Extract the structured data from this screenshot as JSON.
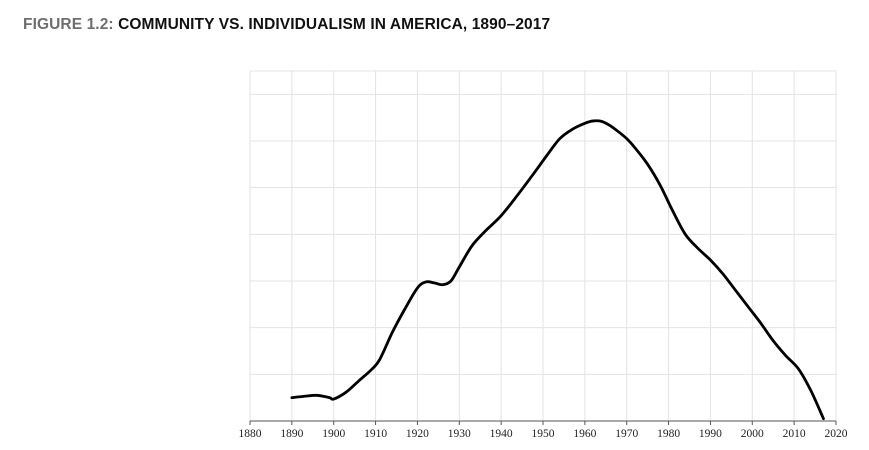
{
  "figure": {
    "label": "FIGURE 1.2:",
    "title": "COMMUNITY VS. INDIVIDUALISM IN AMERICA, 1890–2017"
  },
  "colors": {
    "line": "#000000",
    "grid": "#e3e3e3",
    "label_gray": "#6e6e6e"
  },
  "chart_data": {
    "type": "line",
    "title": "COMMUNITY VS. INDIVIDUALISM IN AMERICA, 1890–2017",
    "xlabel": "",
    "ylabel": "",
    "grid": true,
    "legend": "none",
    "xlim": [
      1880,
      2020
    ],
    "ylim": [
      0,
      7.5
    ],
    "x_ticks": [
      1880,
      1890,
      1900,
      1910,
      1920,
      1930,
      1940,
      1950,
      1960,
      1970,
      1980,
      1990,
      2000,
      2010,
      2020
    ],
    "x_tick_labels": [
      "1880",
      "1890",
      "1900",
      "1910",
      "1920",
      "1930",
      "1940",
      "1950",
      "1960",
      "1970",
      "1980",
      "1990",
      "2000",
      "2010",
      "2020"
    ],
    "y_gridlines": [
      1,
      2,
      3,
      4,
      5,
      6,
      7
    ],
    "y_tick_labels_shown": false,
    "series": [
      {
        "x": [
          1890,
          1893,
          1896,
          1899,
          1900,
          1903,
          1906,
          1909,
          1911,
          1914,
          1917,
          1920,
          1922,
          1924,
          1926,
          1928,
          1930,
          1933,
          1936,
          1940,
          1944,
          1948,
          1951,
          1954,
          1957,
          1960,
          1962,
          1964,
          1966,
          1968,
          1970,
          1972,
          1975,
          1978,
          1981,
          1984,
          1987,
          1990,
          1993,
          1996,
          1999,
          2002,
          2005,
          2008,
          2011,
          2014,
          2017
        ],
        "y": [
          0.5,
          0.53,
          0.55,
          0.5,
          0.47,
          0.62,
          0.86,
          1.1,
          1.32,
          1.9,
          2.4,
          2.85,
          2.98,
          2.96,
          2.92,
          3.0,
          3.3,
          3.75,
          4.05,
          4.4,
          4.85,
          5.33,
          5.7,
          6.05,
          6.25,
          6.38,
          6.43,
          6.42,
          6.33,
          6.2,
          6.05,
          5.85,
          5.5,
          5.05,
          4.5,
          4.0,
          3.7,
          3.45,
          3.15,
          2.8,
          2.45,
          2.1,
          1.72,
          1.4,
          1.12,
          0.65,
          0.05
        ]
      }
    ]
  }
}
